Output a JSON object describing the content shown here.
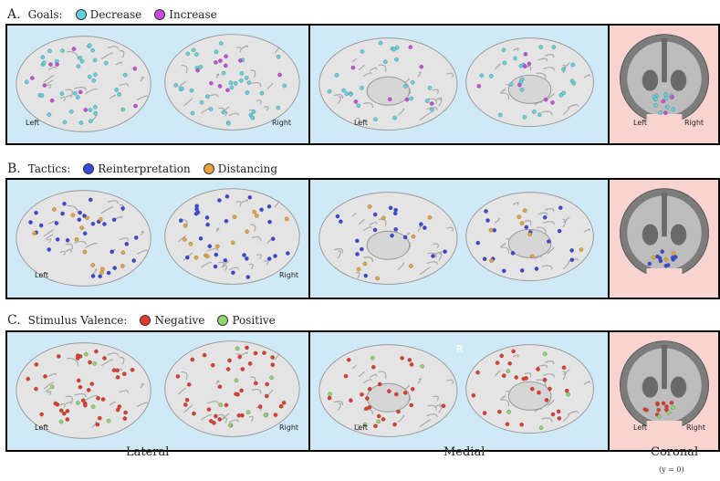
{
  "rows": [
    {
      "letter": "A.",
      "title": "Goals:",
      "legend": [
        {
          "label": "Decrease",
          "color": "#5ed3df"
        },
        {
          "label": "Increase",
          "color": "#c64cd9"
        }
      ],
      "dot_color_a": "#5ed3df",
      "dot_color_b": "#c64cd9",
      "coronal_left": "Left",
      "coronal_right": "Right",
      "lateral_left": "Left",
      "lateral_right": "Right",
      "medial_left": "Left"
    },
    {
      "letter": "B.",
      "title": "Tactics:",
      "legend": [
        {
          "label": "Reinterpretation",
          "color": "#3948d8"
        },
        {
          "label": "Distancing",
          "color": "#e9a33b"
        }
      ],
      "dot_color_a": "#3948d8",
      "dot_color_b": "#e9a33b",
      "coronal_left": "",
      "coronal_right": "",
      "lateral_left": "Left",
      "lateral_right": "Right",
      "medial_left": ""
    },
    {
      "letter": "C.",
      "title": "Stimulus Valence:",
      "legend": [
        {
          "label": "Negative",
          "color": "#e23a2b"
        },
        {
          "label": "Positive",
          "color": "#8ed56a"
        }
      ],
      "dot_color_a": "#e23a2b",
      "dot_color_b": "#8ed56a",
      "coronal_left": "Left",
      "coronal_right": "Right",
      "lateral_left": "Left",
      "lateral_right": "Right",
      "medial_left": "Left",
      "medial_marker": "R"
    }
  ],
  "bottom": {
    "lateral": "Lateral",
    "medial": "Medial",
    "coronal": "Coronal",
    "coronal_sub": "(y = 0)"
  }
}
